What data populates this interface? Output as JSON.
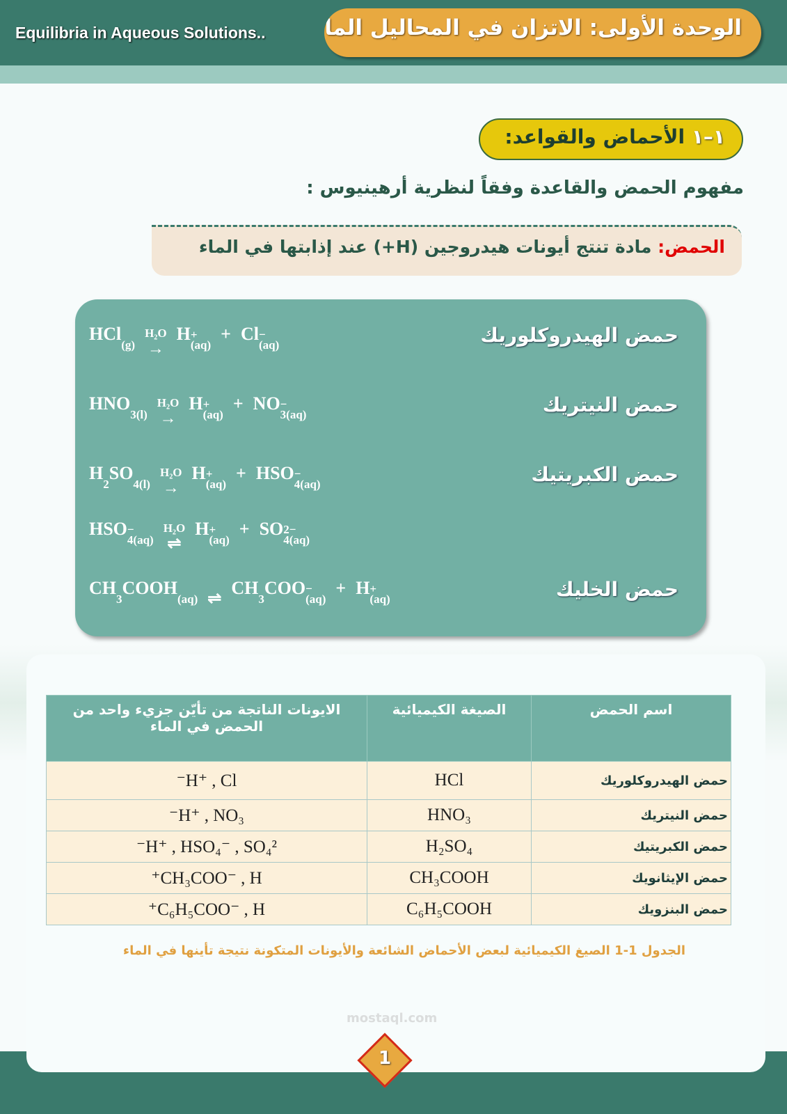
{
  "header": {
    "english_title": "Equilibria in Aqueous Solutions..",
    "unit_title": "الوحدة الأولى: الاتزان في المحاليل المائية"
  },
  "section": {
    "number": "١–١",
    "title": "الأحماض والقواعد:"
  },
  "subtitle": "مفهوم الحمض والقاعدة وفقاً لنظرية أرهينيوس :",
  "definition": {
    "label": "الحمض:",
    "text": "مادة تنتج أيونات هيدروجين (H+)  عند إذابتها في الماء"
  },
  "equations": [
    {
      "name": "حمض الهيدروكلوريك",
      "reactant": [
        "HCl",
        [
          "(g)",
          ""
        ]
      ],
      "arrow": "→",
      "condition": "H₂O",
      "products": [
        [
          "H",
          [
            "(aq)",
            "+"
          ]
        ],
        "+",
        [
          "Cl",
          [
            "(aq)",
            "−"
          ]
        ]
      ]
    },
    {
      "name": "حمض النيتريك",
      "reactant": [
        "HNO",
        [
          "3(l)",
          ""
        ]
      ],
      "arrow": "→",
      "condition": "H₂O",
      "products": [
        [
          "H",
          [
            "(aq)",
            "+"
          ]
        ],
        "+",
        [
          "NO",
          [
            "3(aq)",
            "−"
          ]
        ]
      ]
    },
    {
      "name": "حمض الكبريتيك",
      "reactant": [
        "H",
        [
          "2",
          ""
        ],
        "SO",
        [
          "4(l)",
          ""
        ]
      ],
      "arrow": "→",
      "condition": "H₂O",
      "products": [
        [
          "H",
          [
            "(aq)",
            "+"
          ]
        ],
        "+",
        [
          "HSO",
          [
            "4(aq)",
            "−"
          ]
        ]
      ]
    },
    {
      "name": "",
      "reactant": [
        "HSO",
        [
          "4(aq)",
          "−"
        ]
      ],
      "arrow": "⇌",
      "condition": "H₂O",
      "products": [
        [
          "H",
          [
            "(aq)",
            "+"
          ]
        ],
        "+",
        [
          "SO",
          [
            "4(aq)",
            "2−"
          ]
        ]
      ]
    },
    {
      "name": "حمض الخليك",
      "reactant": [
        "CH",
        [
          "3",
          ""
        ],
        "COOH",
        [
          "(aq)",
          ""
        ]
      ],
      "arrow": "⇌",
      "condition": "",
      "products": [
        [
          "CH",
          [
            "3",
            ""
          ],
          "COO",
          [
            "(aq)",
            "−"
          ]
        ],
        "+",
        [
          "H",
          [
            "(aq)",
            "+"
          ]
        ]
      ]
    }
  ],
  "table": {
    "headers": [
      "اسم الحمض",
      "الصيغة الكيميائية",
      "الايونات الناتجة من تأيّن جزيء واحد من الحمض في الماء"
    ],
    "rows": [
      [
        "حمض الهيدروكلوريك",
        "HCl",
        "H⁺ , Cl⁻"
      ],
      [
        "حمض النيتريك",
        "HNO₃",
        "H⁺ , NO₃⁻"
      ],
      [
        "حمض الكبريتيك",
        "H₂SO₄",
        "H⁺ , HSO₄⁻ , SO₄²⁻"
      ],
      [
        "حمض الإيثانويك",
        "CH₃COOH",
        "CH₃COO⁻ , H⁺"
      ],
      [
        "حمض البنزويك",
        "C₆H₅COOH",
        "C₆H₅COO⁻ , H⁺"
      ]
    ],
    "caption": "الجدول 1-1 الصيغ الكيميائية لبعض الأحماض الشائعة والأيونات المتكونة نتيجة تأينها في الماء"
  },
  "watermark": "mostaql.com",
  "page_number": "1",
  "colors": {
    "header": "#3a7a6c",
    "accent": "#e8a940",
    "section": "#e6c80c",
    "equation_box": "#72b0a4",
    "red_label": "#e00000"
  }
}
